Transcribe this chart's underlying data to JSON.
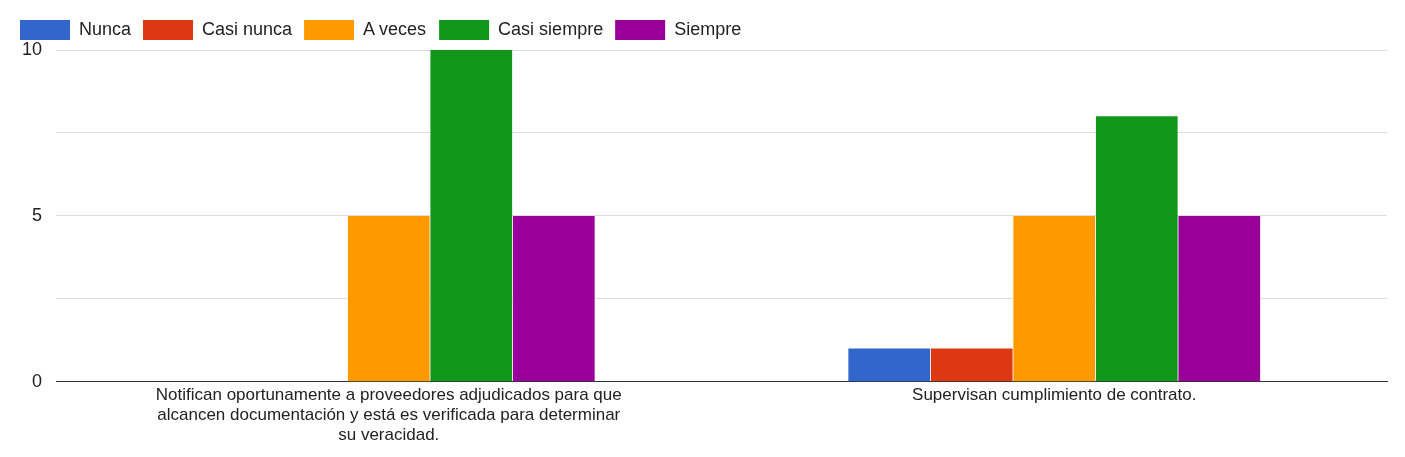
{
  "chart_data": {
    "type": "bar",
    "categories": [
      "Notifican oportunamente a proveedores adjudicados para que alcancen documentación y está es verificada para determinar su veracidad.",
      "Supervisan cumplimiento de contrato."
    ],
    "series": [
      {
        "name": "Nunca",
        "color": "#3366cc",
        "values": [
          0,
          1
        ]
      },
      {
        "name": "Casi nunca",
        "color": "#dc3912",
        "values": [
          0,
          1
        ]
      },
      {
        "name": "A veces",
        "color": "#ff9900",
        "values": [
          5,
          5
        ]
      },
      {
        "name": "Casi siempre",
        "color": "#109618",
        "values": [
          10,
          8
        ]
      },
      {
        "name": "Siempre",
        "color": "#990099",
        "values": [
          5,
          5
        ]
      }
    ],
    "ylim": [
      0,
      10
    ],
    "yticks": [
      0,
      {
        "value": 2.5,
        "label": null
      },
      5,
      {
        "value": 7.5,
        "label": null
      },
      10
    ],
    "grid": "y",
    "legend": "top left"
  }
}
